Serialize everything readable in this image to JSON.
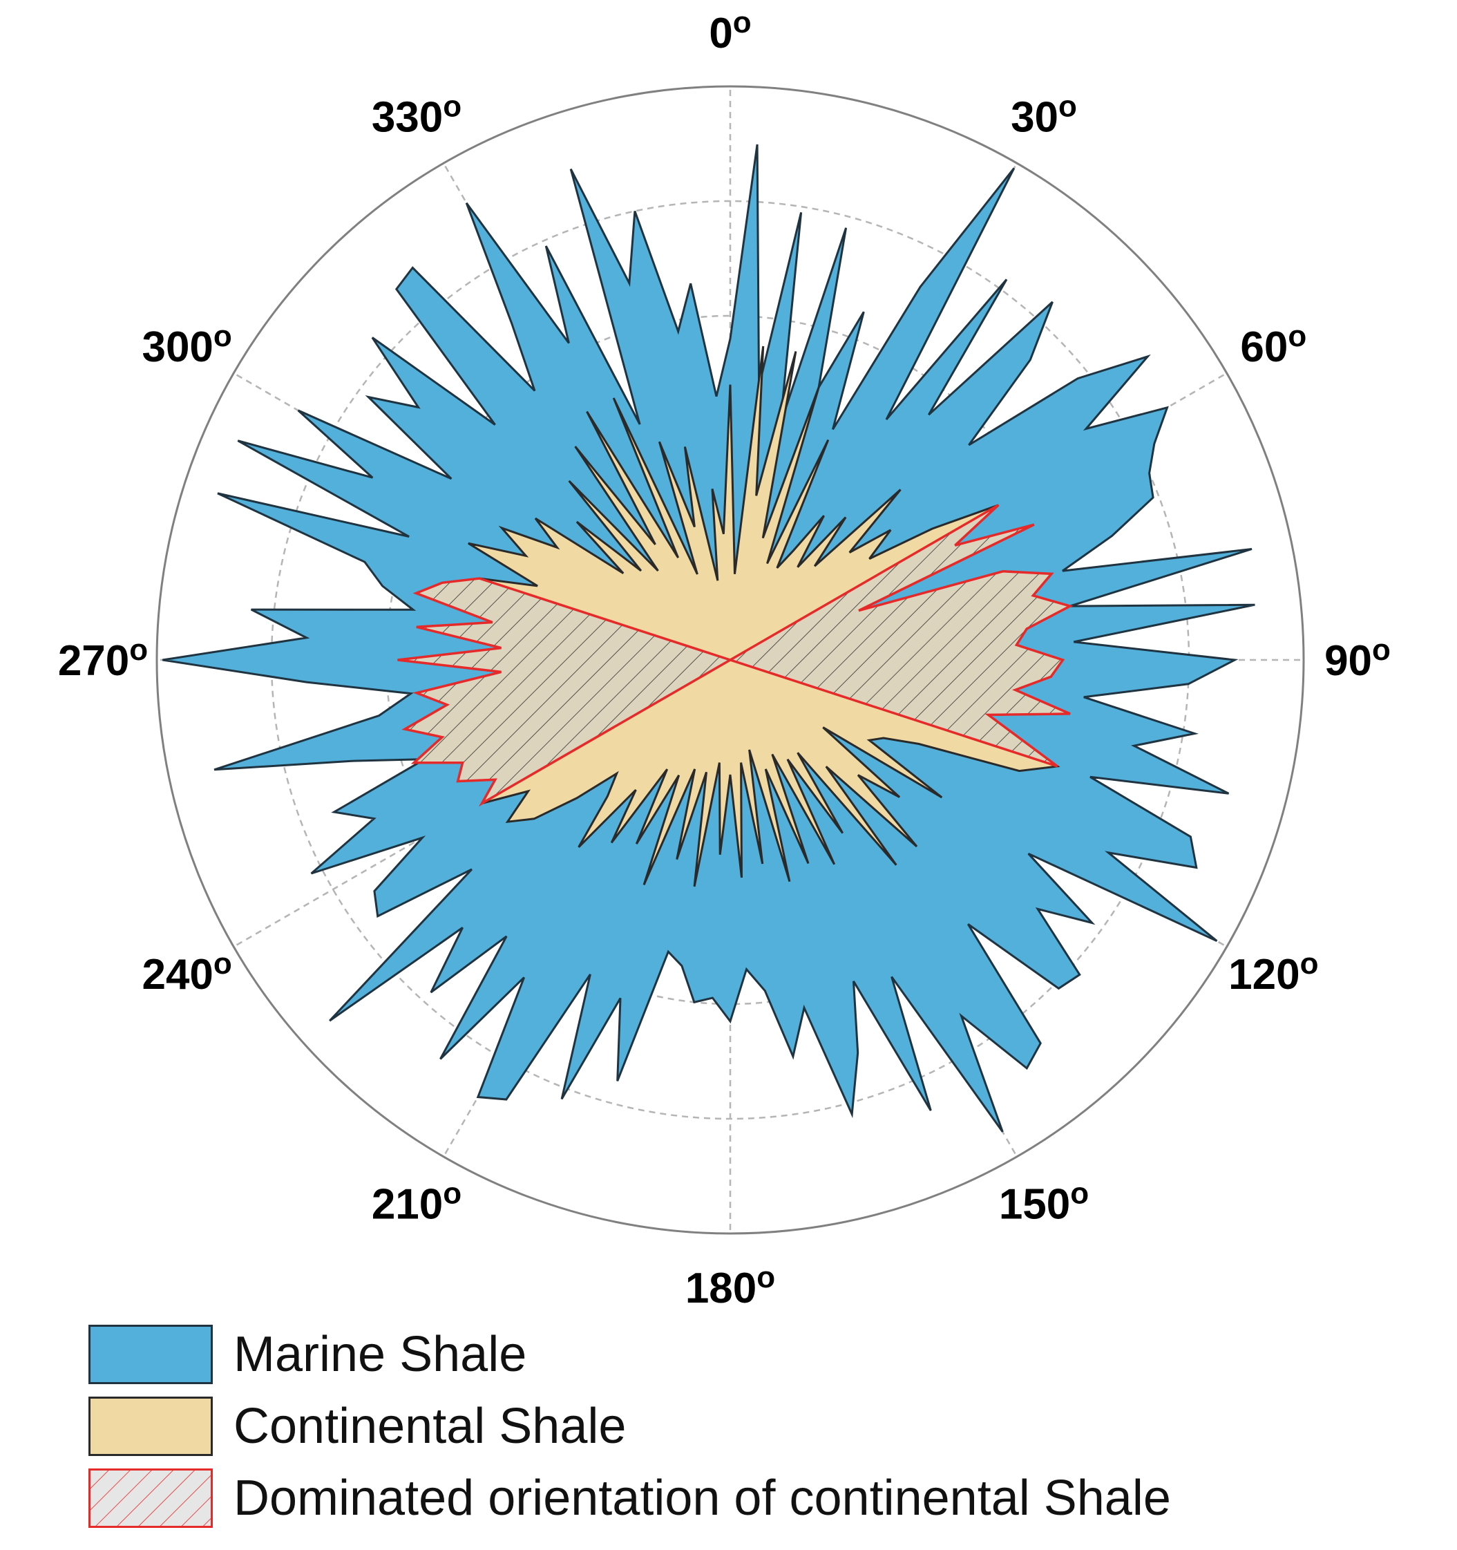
{
  "chart_data": {
    "type": "polar-area",
    "angle_ticks": [
      {
        "angle": 0,
        "label": "0"
      },
      {
        "angle": 30,
        "label": "30"
      },
      {
        "angle": 60,
        "label": "60"
      },
      {
        "angle": 90,
        "label": "90"
      },
      {
        "angle": 120,
        "label": "120"
      },
      {
        "angle": 150,
        "label": "150"
      },
      {
        "angle": 180,
        "label": "180"
      },
      {
        "angle": 210,
        "label": "210"
      },
      {
        "angle": 240,
        "label": "240"
      },
      {
        "angle": 270,
        "label": "270"
      },
      {
        "angle": 300,
        "label": "300"
      },
      {
        "angle": 330,
        "label": "330"
      }
    ],
    "degree_mark": "o",
    "rmax": 1.0,
    "radial_grid": [
      0.2,
      0.4,
      0.6,
      0.8
    ],
    "grid": true,
    "direction": "clockwise",
    "zero_location": "top",
    "series": [
      {
        "name": "Marine Shale",
        "color": "#52b0da",
        "edge": "#1f3340",
        "points": [
          [
            0,
            0.56
          ],
          [
            3,
            0.9
          ],
          [
            6,
            0.48
          ],
          [
            9,
            0.79
          ],
          [
            12,
            0.42
          ],
          [
            15,
            0.78
          ],
          [
            18,
            0.5
          ],
          [
            21,
            0.65
          ],
          [
            24,
            0.44
          ],
          [
            27,
            0.73
          ],
          [
            30,
            0.99
          ],
          [
            33,
            0.5
          ],
          [
            36,
            0.82
          ],
          [
            39,
            0.55
          ],
          [
            42,
            0.84
          ],
          [
            45,
            0.74
          ],
          [
            48,
            0.56
          ],
          [
            51,
            0.78
          ],
          [
            54,
            0.9
          ],
          [
            57,
            0.74
          ],
          [
            60,
            0.88
          ],
          [
            63,
            0.83
          ],
          [
            66,
            0.8
          ],
          [
            69,
            0.79
          ],
          [
            72,
            0.7
          ],
          [
            75,
            0.6
          ],
          [
            78,
            0.93
          ],
          [
            81,
            0.6
          ],
          [
            84,
            0.92
          ],
          [
            87,
            0.6
          ],
          [
            90,
            0.88
          ],
          [
            93,
            0.8
          ],
          [
            96,
            0.62
          ],
          [
            99,
            0.82
          ],
          [
            102,
            0.72
          ],
          [
            105,
            0.9
          ],
          [
            108,
            0.66
          ],
          [
            111,
            0.86
          ],
          [
            114,
            0.89
          ],
          [
            117,
            0.74
          ],
          [
            120,
            0.98
          ],
          [
            123,
            0.62
          ],
          [
            126,
            0.78
          ],
          [
            129,
            0.69
          ],
          [
            132,
            0.82
          ],
          [
            135,
            0.81
          ],
          [
            138,
            0.62
          ],
          [
            141,
            0.86
          ],
          [
            144,
            0.88
          ],
          [
            147,
            0.74
          ],
          [
            150,
            0.95
          ],
          [
            153,
            0.62
          ],
          [
            156,
            0.86
          ],
          [
            159,
            0.6
          ],
          [
            162,
            0.72
          ],
          [
            165,
            0.82
          ],
          [
            168,
            0.62
          ],
          [
            171,
            0.7
          ],
          [
            174,
            0.58
          ],
          [
            177,
            0.54
          ],
          [
            180,
            0.63
          ],
          [
            183,
            0.59
          ],
          [
            186,
            0.6
          ],
          [
            189,
            0.54
          ],
          [
            192,
            0.52
          ],
          [
            195,
            0.76
          ],
          [
            198,
            0.62
          ],
          [
            201,
            0.82
          ],
          [
            204,
            0.6
          ],
          [
            207,
            0.86
          ],
          [
            210,
            0.88
          ],
          [
            213,
            0.66
          ],
          [
            216,
            0.86
          ],
          [
            219,
            0.62
          ],
          [
            222,
            0.78
          ],
          [
            225,
            0.66
          ],
          [
            228,
            0.94
          ],
          [
            231,
            0.58
          ],
          [
            234,
            0.76
          ],
          [
            237,
            0.74
          ],
          [
            240,
            0.62
          ],
          [
            243,
            0.82
          ],
          [
            246,
            0.68
          ],
          [
            249,
            0.74
          ],
          [
            252,
            0.56
          ],
          [
            255,
            0.68
          ],
          [
            258,
            0.92
          ],
          [
            261,
            0.62
          ],
          [
            264,
            0.56
          ],
          [
            267,
            0.74
          ],
          [
            270,
            0.99
          ],
          [
            273,
            0.74
          ],
          [
            276,
            0.84
          ],
          [
            279,
            0.56
          ],
          [
            282,
            0.62
          ],
          [
            285,
            0.66
          ],
          [
            288,
            0.94
          ],
          [
            291,
            0.6
          ],
          [
            294,
            0.94
          ],
          [
            297,
            0.7
          ],
          [
            300,
            0.87
          ],
          [
            303,
            0.58
          ],
          [
            306,
            0.78
          ],
          [
            309,
            0.7
          ],
          [
            312,
            0.84
          ],
          [
            315,
            0.58
          ],
          [
            318,
            0.87
          ],
          [
            321,
            0.88
          ],
          [
            324,
            0.58
          ],
          [
            327,
            0.7
          ],
          [
            330,
            0.92
          ],
          [
            333,
            0.62
          ],
          [
            336,
            0.79
          ],
          [
            339,
            0.44
          ],
          [
            342,
            0.9
          ],
          [
            345,
            0.68
          ],
          [
            348,
            0.8
          ],
          [
            351,
            0.58
          ],
          [
            354,
            0.66
          ],
          [
            357,
            0.46
          ]
        ]
      },
      {
        "name": "Continental Shale",
        "color": "#f1d9a4",
        "edge": "#2a2a2a",
        "points": [
          [
            0,
            0.48
          ],
          [
            3,
            0.15
          ],
          [
            6,
            0.55
          ],
          [
            9,
            0.29
          ],
          [
            12,
            0.55
          ],
          [
            15,
            0.22
          ],
          [
            18,
            0.5
          ],
          [
            21,
            0.18
          ],
          [
            24,
            0.42
          ],
          [
            27,
            0.18
          ],
          [
            30,
            0.22
          ],
          [
            33,
            0.3
          ],
          [
            36,
            0.2
          ],
          [
            39,
            0.32
          ],
          [
            42,
            0.22
          ],
          [
            45,
            0.42
          ],
          [
            48,
            0.28
          ],
          [
            51,
            0.36
          ],
          [
            54,
            0.3
          ],
          [
            57,
            0.42
          ],
          [
            60,
            0.54
          ],
          [
            63,
            0.44
          ],
          [
            66,
            0.58
          ],
          [
            69,
            0.24
          ],
          [
            72,
            0.5
          ],
          [
            75,
            0.58
          ],
          [
            78,
            0.54
          ],
          [
            81,
            0.6
          ],
          [
            84,
            0.52
          ],
          [
            87,
            0.5
          ],
          [
            90,
            0.58
          ],
          [
            93,
            0.56
          ],
          [
            96,
            0.5
          ],
          [
            99,
            0.6
          ],
          [
            102,
            0.46
          ],
          [
            105,
            0.52
          ],
          [
            108,
            0.6
          ],
          [
            111,
            0.54
          ],
          [
            114,
            0.36
          ],
          [
            117,
            0.3
          ],
          [
            120,
            0.28
          ],
          [
            123,
            0.44
          ],
          [
            126,
            0.2
          ],
          [
            129,
            0.38
          ],
          [
            132,
            0.3
          ],
          [
            135,
            0.46
          ],
          [
            138,
            0.25
          ],
          [
            141,
            0.46
          ],
          [
            144,
            0.2
          ],
          [
            147,
            0.36
          ],
          [
            150,
            0.2
          ],
          [
            153,
            0.4
          ],
          [
            156,
            0.18
          ],
          [
            159,
            0.38
          ],
          [
            162,
            0.2
          ],
          [
            165,
            0.4
          ],
          [
            168,
            0.16
          ],
          [
            171,
            0.36
          ],
          [
            174,
            0.18
          ],
          [
            177,
            0.38
          ],
          [
            180,
            0.2
          ],
          [
            183,
            0.34
          ],
          [
            186,
            0.18
          ],
          [
            189,
            0.4
          ],
          [
            192,
            0.2
          ],
          [
            195,
            0.36
          ],
          [
            198,
            0.2
          ],
          [
            201,
            0.42
          ],
          [
            204,
            0.22
          ],
          [
            207,
            0.36
          ],
          [
            210,
            0.22
          ],
          [
            213,
            0.38
          ],
          [
            216,
            0.28
          ],
          [
            219,
            0.42
          ],
          [
            222,
            0.32
          ],
          [
            225,
            0.28
          ],
          [
            228,
            0.36
          ],
          [
            231,
            0.44
          ],
          [
            234,
            0.48
          ],
          [
            237,
            0.42
          ],
          [
            240,
            0.5
          ],
          [
            243,
            0.46
          ],
          [
            246,
            0.52
          ],
          [
            249,
            0.5
          ],
          [
            252,
            0.58
          ],
          [
            255,
            0.52
          ],
          [
            258,
            0.58
          ],
          [
            261,
            0.5
          ],
          [
            264,
            0.55
          ],
          [
            267,
            0.4
          ],
          [
            270,
            0.58
          ],
          [
            273,
            0.4
          ],
          [
            276,
            0.55
          ],
          [
            279,
            0.42
          ],
          [
            282,
            0.56
          ],
          [
            285,
            0.52
          ],
          [
            288,
            0.46
          ],
          [
            291,
            0.36
          ],
          [
            294,
            0.5
          ],
          [
            297,
            0.4
          ],
          [
            300,
            0.46
          ],
          [
            303,
            0.36
          ],
          [
            306,
            0.42
          ],
          [
            309,
            0.24
          ],
          [
            312,
            0.36
          ],
          [
            315,
            0.22
          ],
          [
            318,
            0.42
          ],
          [
            321,
            0.2
          ],
          [
            324,
            0.46
          ],
          [
            327,
            0.24
          ],
          [
            330,
            0.5
          ],
          [
            333,
            0.2
          ],
          [
            336,
            0.5
          ],
          [
            339,
            0.16
          ],
          [
            342,
            0.4
          ],
          [
            345,
            0.24
          ],
          [
            348,
            0.38
          ],
          [
            351,
            0.14
          ],
          [
            354,
            0.3
          ],
          [
            357,
            0.22
          ]
        ]
      },
      {
        "name": "Dominated orientation of continental Shale",
        "color": "#e8e6df",
        "edge": "#e62a2a",
        "hatch": "#3a3a3a",
        "points": [
          [
            60,
            0.0
          ],
          [
            60,
            0.54
          ],
          [
            63,
            0.44
          ],
          [
            66,
            0.58
          ],
          [
            69,
            0.24
          ],
          [
            72,
            0.5
          ],
          [
            75,
            0.58
          ],
          [
            78,
            0.54
          ],
          [
            81,
            0.6
          ],
          [
            84,
            0.52
          ],
          [
            87,
            0.5
          ],
          [
            90,
            0.58
          ],
          [
            93,
            0.56
          ],
          [
            96,
            0.5
          ],
          [
            99,
            0.6
          ],
          [
            102,
            0.46
          ],
          [
            105,
            0.52
          ],
          [
            108,
            0.6
          ],
          [
            108,
            0.0
          ],
          [
            240,
            0.0
          ],
          [
            240,
            0.5
          ],
          [
            243,
            0.46
          ],
          [
            246,
            0.52
          ],
          [
            249,
            0.5
          ],
          [
            252,
            0.58
          ],
          [
            255,
            0.52
          ],
          [
            258,
            0.58
          ],
          [
            261,
            0.5
          ],
          [
            264,
            0.55
          ],
          [
            267,
            0.4
          ],
          [
            270,
            0.58
          ],
          [
            273,
            0.4
          ],
          [
            276,
            0.55
          ],
          [
            279,
            0.42
          ],
          [
            282,
            0.56
          ],
          [
            285,
            0.52
          ],
          [
            288,
            0.46
          ],
          [
            288,
            0.0
          ]
        ]
      }
    ],
    "legend": {
      "position": "bottom-left",
      "entries": [
        {
          "label": "Marine Shale"
        },
        {
          "label": "Continental Shale"
        },
        {
          "label": "Dominated orientation of continental Shale"
        }
      ]
    }
  }
}
